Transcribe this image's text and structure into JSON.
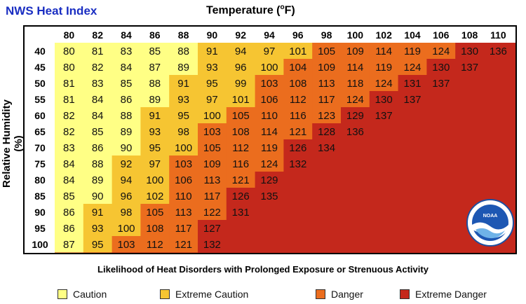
{
  "title": "NWS Heat Index",
  "subtitle": "Likelihood of Heat Disorders with Prolonged Exposure or Strenuous Activity",
  "chart_data": {
    "type": "heatmap",
    "title": "NWS Heat Index",
    "xlabel": "Temperature (°F)",
    "xlabel_main": "Temperature (",
    "xlabel_sup": "o",
    "xlabel_unit": "F)",
    "ylabel": "Relative Humidity (%)",
    "x": [
      "80",
      "82",
      "84",
      "86",
      "88",
      "90",
      "92",
      "94",
      "96",
      "98",
      "100",
      "102",
      "104",
      "106",
      "108",
      "110"
    ],
    "y": [
      "40",
      "45",
      "50",
      "55",
      "60",
      "65",
      "70",
      "75",
      "80",
      "85",
      "90",
      "95",
      "100"
    ],
    "values": [
      [
        80,
        81,
        83,
        85,
        88,
        91,
        94,
        97,
        101,
        105,
        109,
        114,
        119,
        124,
        130,
        136
      ],
      [
        80,
        82,
        84,
        87,
        89,
        93,
        96,
        100,
        104,
        109,
        114,
        119,
        124,
        130,
        137,
        null
      ],
      [
        81,
        83,
        85,
        88,
        91,
        95,
        99,
        103,
        108,
        113,
        118,
        124,
        131,
        137,
        null,
        null
      ],
      [
        81,
        84,
        86,
        89,
        93,
        97,
        101,
        106,
        112,
        117,
        124,
        130,
        137,
        null,
        null,
        null
      ],
      [
        82,
        84,
        88,
        91,
        95,
        100,
        105,
        110,
        116,
        123,
        129,
        137,
        null,
        null,
        null,
        null
      ],
      [
        82,
        85,
        89,
        93,
        98,
        103,
        108,
        114,
        121,
        128,
        136,
        null,
        null,
        null,
        null,
        null
      ],
      [
        83,
        86,
        90,
        95,
        100,
        105,
        112,
        119,
        126,
        134,
        null,
        null,
        null,
        null,
        null,
        null
      ],
      [
        84,
        88,
        92,
        97,
        103,
        109,
        116,
        124,
        132,
        null,
        null,
        null,
        null,
        null,
        null,
        null
      ],
      [
        84,
        89,
        94,
        100,
        106,
        113,
        121,
        129,
        null,
        null,
        null,
        null,
        null,
        null,
        null,
        null
      ],
      [
        85,
        90,
        96,
        102,
        110,
        117,
        126,
        135,
        null,
        null,
        null,
        null,
        null,
        null,
        null,
        null
      ],
      [
        86,
        91,
        98,
        105,
        113,
        122,
        131,
        null,
        null,
        null,
        null,
        null,
        null,
        null,
        null,
        null
      ],
      [
        86,
        93,
        100,
        108,
        117,
        127,
        null,
        null,
        null,
        null,
        null,
        null,
        null,
        null,
        null,
        null
      ],
      [
        87,
        95,
        103,
        112,
        121,
        132,
        null,
        null,
        null,
        null,
        null,
        null,
        null,
        null,
        null,
        null
      ]
    ],
    "categories": [
      {
        "name": "Caution",
        "min": 80,
        "max": 90,
        "color": "#ffff85"
      },
      {
        "name": "Extreme Caution",
        "min": 91,
        "max": 102,
        "color": "#f6c532"
      },
      {
        "name": "Danger",
        "min": 103,
        "max": 124,
        "color": "#eb6d1e"
      },
      {
        "name": "Extreme Danger",
        "min": 125,
        "max": 200,
        "color": "#c4281c"
      }
    ],
    "header_bg": "#ffffff",
    "legend": "bottom"
  },
  "legend": [
    {
      "label": "Caution",
      "color": "#ffff85"
    },
    {
      "label": "Extreme Caution",
      "color": "#f6c532"
    },
    {
      "label": "Danger",
      "color": "#eb6d1e"
    },
    {
      "label": "Extreme Danger",
      "color": "#c4281c"
    }
  ],
  "logo": {
    "icon": "noaa-logo-icon",
    "text": "NOAA"
  }
}
